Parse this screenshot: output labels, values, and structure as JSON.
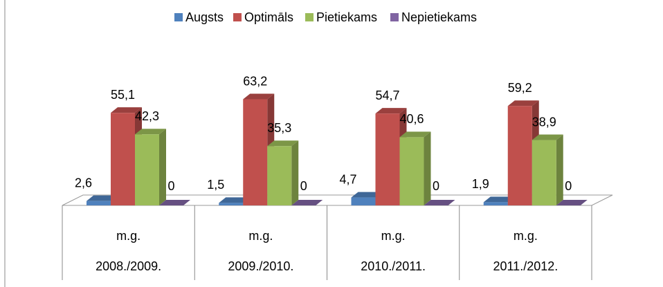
{
  "chart_data": {
    "type": "bar3d",
    "categories": [
      [
        "m.g.",
        "2008./2009."
      ],
      [
        "m.g.",
        "2009./2010."
      ],
      [
        "m.g.",
        "2010./2011."
      ],
      [
        "m.g.",
        "2011./2012."
      ]
    ],
    "series": [
      {
        "name": "Augsts",
        "color": "#4f81bd",
        "values": [
          2.6,
          1.5,
          4.7,
          1.9
        ],
        "value_labels": [
          "2,6",
          "1,5",
          "4,7",
          "1,9"
        ]
      },
      {
        "name": "Optimāls",
        "color": "#c0504d",
        "values": [
          55.1,
          63.2,
          54.7,
          59.2
        ],
        "value_labels": [
          "55,1",
          "63,2",
          "54,7",
          "59,2"
        ]
      },
      {
        "name": "Pietiekams",
        "color": "#9bbb59",
        "values": [
          42.3,
          35.3,
          40.6,
          38.9
        ],
        "value_labels": [
          "42,3",
          "35,3",
          "40,6",
          "38,9"
        ]
      },
      {
        "name": "Nepietiekams",
        "color": "#8064a2",
        "values": [
          0,
          0,
          0,
          0
        ],
        "value_labels": [
          "0",
          "0",
          "0",
          "0"
        ]
      }
    ],
    "ylim": [
      0,
      70
    ],
    "legend": "top"
  }
}
